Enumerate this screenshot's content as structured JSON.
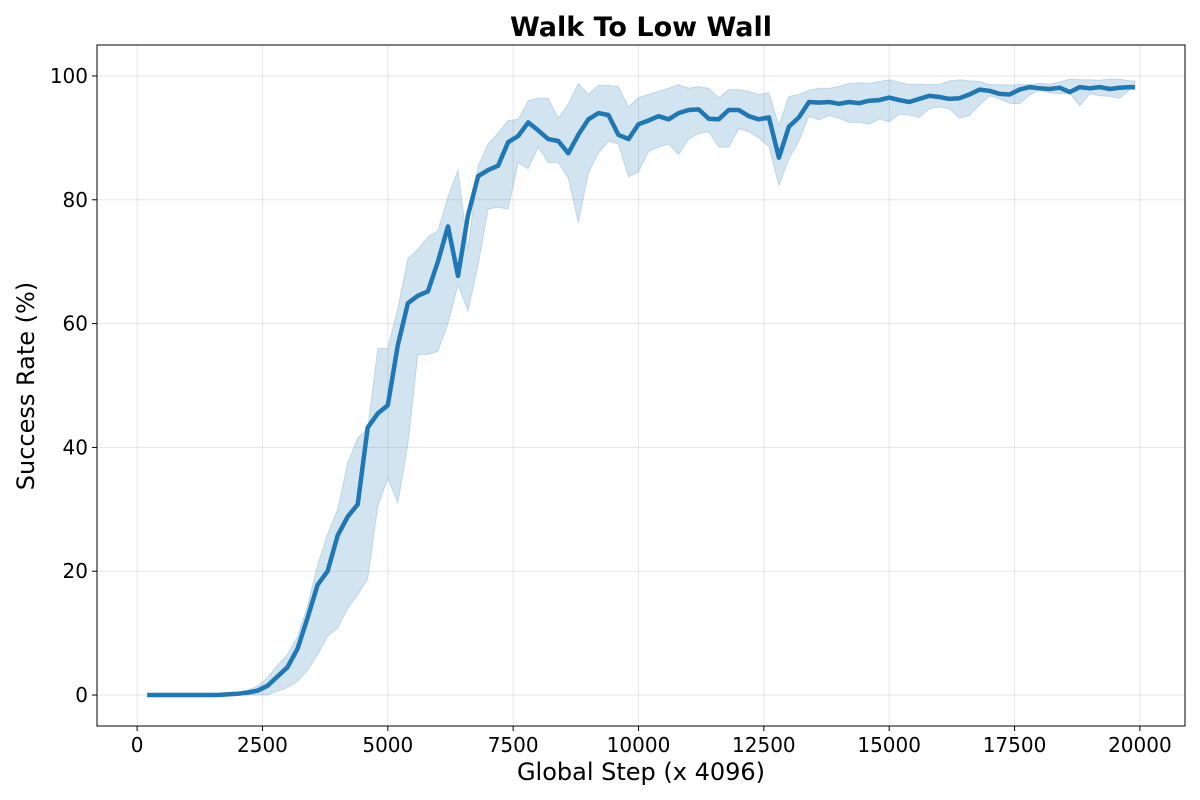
{
  "chart_data": {
    "type": "line",
    "title": "Walk To Low Wall",
    "xlabel": "Global Step (x 4096)",
    "ylabel": "Success Rate (%)",
    "xlim": [
      -800,
      20900
    ],
    "ylim": [
      -5,
      105
    ],
    "xticks": [
      0,
      2500,
      5000,
      7500,
      10000,
      12500,
      15000,
      17500,
      20000
    ],
    "yticks": [
      0,
      20,
      40,
      60,
      80,
      100
    ],
    "grid": true,
    "legend": "none",
    "colors": {
      "line": "#1f77b4",
      "band": "#1f77b4"
    },
    "series": [
      {
        "x": [
          200,
          400,
          600,
          800,
          1000,
          1200,
          1400,
          1600,
          1800,
          2000,
          2200,
          2400,
          2600,
          2800,
          3000,
          3200,
          3400,
          3600,
          3800,
          4000,
          4200,
          4400,
          4600,
          4800,
          5000,
          5200,
          5400,
          5600,
          5800,
          6000,
          6200,
          6400,
          6600,
          6800,
          7000,
          7200,
          7400,
          7600,
          7800,
          8000,
          8200,
          8400,
          8600,
          8800,
          9000,
          9200,
          9400,
          9600,
          9800,
          10000,
          10200,
          10400,
          10600,
          10800,
          11000,
          11200,
          11400,
          11600,
          11800,
          12000,
          12200,
          12400,
          12600,
          12800,
          13000,
          13200,
          13400,
          13600,
          13800,
          14000,
          14200,
          14400,
          14600,
          14800,
          15000,
          15200,
          15400,
          15600,
          15800,
          16000,
          16200,
          16400,
          16600,
          16800,
          17000,
          17200,
          17400,
          17600,
          17800,
          18000,
          18200,
          18400,
          18600,
          18800,
          19000,
          19200,
          19400,
          19600,
          19800,
          19900
        ],
        "y": [
          0,
          0,
          0,
          0,
          0,
          0,
          0,
          0,
          0.1,
          0.2,
          0.4,
          0.7,
          1.5,
          3,
          4.5,
          7.5,
          12.5,
          17.8,
          20,
          25.8,
          28.8,
          30.8,
          43.2,
          45.5,
          46.8,
          56.5,
          63.3,
          64.5,
          65.2,
          70,
          75.7,
          67.7,
          77.5,
          83.8,
          84.8,
          85.5,
          89.3,
          90.3,
          92.5,
          91.2,
          89.8,
          89.5,
          87.5,
          90.5,
          93,
          94,
          93.7,
          90.5,
          89.8,
          92.2,
          92.8,
          93.5,
          93,
          94,
          94.5,
          94.6,
          93.1,
          93,
          94.5,
          94.5,
          93.5,
          93,
          93.3,
          86.8,
          91.8,
          93.3,
          95.8,
          95.7,
          95.8,
          95.5,
          95.8,
          95.6,
          96,
          96.1,
          96.5,
          96.1,
          95.8,
          96.3,
          96.8,
          96.6,
          96.3,
          96.4,
          97,
          97.8,
          97.6,
          97.1,
          97,
          97.8,
          98.2,
          98,
          97.9,
          98.1,
          97.4,
          98.2,
          98,
          98.2,
          97.9,
          98.1,
          98.2,
          98.2
        ],
        "lower": [
          0,
          0,
          0,
          0,
          0,
          0,
          0,
          0,
          0,
          0,
          0,
          0,
          0,
          0.6,
          1.2,
          2.2,
          4,
          6.5,
          9.5,
          10.8,
          14,
          16.2,
          18.8,
          30.5,
          35,
          31,
          40.5,
          55,
          55,
          55.5,
          60,
          66.3,
          62,
          69.5,
          78.5,
          78.8,
          78.5,
          86,
          85,
          88.5,
          86,
          86,
          83.5,
          76.3,
          84.3,
          87.5,
          89.5,
          89,
          83.7,
          84.5,
          87.8,
          88.5,
          89,
          87.3,
          89.8,
          90.7,
          91,
          88.5,
          88.5,
          91.5,
          91,
          90,
          88.6,
          82.3,
          86.6,
          89.5,
          93.5,
          92.9,
          93.6,
          93.2,
          92.5,
          92.5,
          92.2,
          93,
          92.6,
          93.8,
          93.7,
          93.3,
          94.7,
          95,
          94.7,
          93.2,
          93.6,
          95.3,
          96.8,
          96.3,
          95.6,
          95.5,
          96.9,
          97.7,
          97.3,
          97.1,
          97.2,
          95.2,
          97.1,
          96.8,
          96.7,
          96.4,
          97.8,
          97.8
        ],
        "upper": [
          0,
          0,
          0,
          0,
          0,
          0,
          0,
          0,
          0.2,
          0.4,
          0.8,
          1.4,
          2.8,
          4.8,
          6.6,
          9.5,
          14.5,
          21,
          26,
          30,
          37.5,
          41.5,
          43,
          56,
          56,
          62.5,
          70.5,
          72,
          74,
          75,
          80.5,
          84.8,
          72,
          85.5,
          89,
          90.8,
          92.8,
          93,
          96,
          96.4,
          96.4,
          93.2,
          95.5,
          98.8,
          97,
          98.5,
          98.5,
          98.3,
          95,
          96.5,
          97,
          97.5,
          98,
          98.6,
          98,
          98.3,
          98,
          96.5,
          97.8,
          97.8,
          97.5,
          97,
          97.3,
          92,
          96.7,
          97,
          97.7,
          98,
          98,
          98.3,
          98.8,
          98.9,
          98.8,
          99.1,
          99.4,
          99,
          98.6,
          98.7,
          98.6,
          98.6,
          99.2,
          99.4,
          99.2,
          99.1,
          98.6,
          98.6,
          98.5,
          98.6,
          98.6,
          98.8,
          98.7,
          99,
          99.5,
          99.4,
          99.4,
          99.3,
          99.5,
          99.5,
          99.2,
          99.2
        ]
      }
    ]
  }
}
